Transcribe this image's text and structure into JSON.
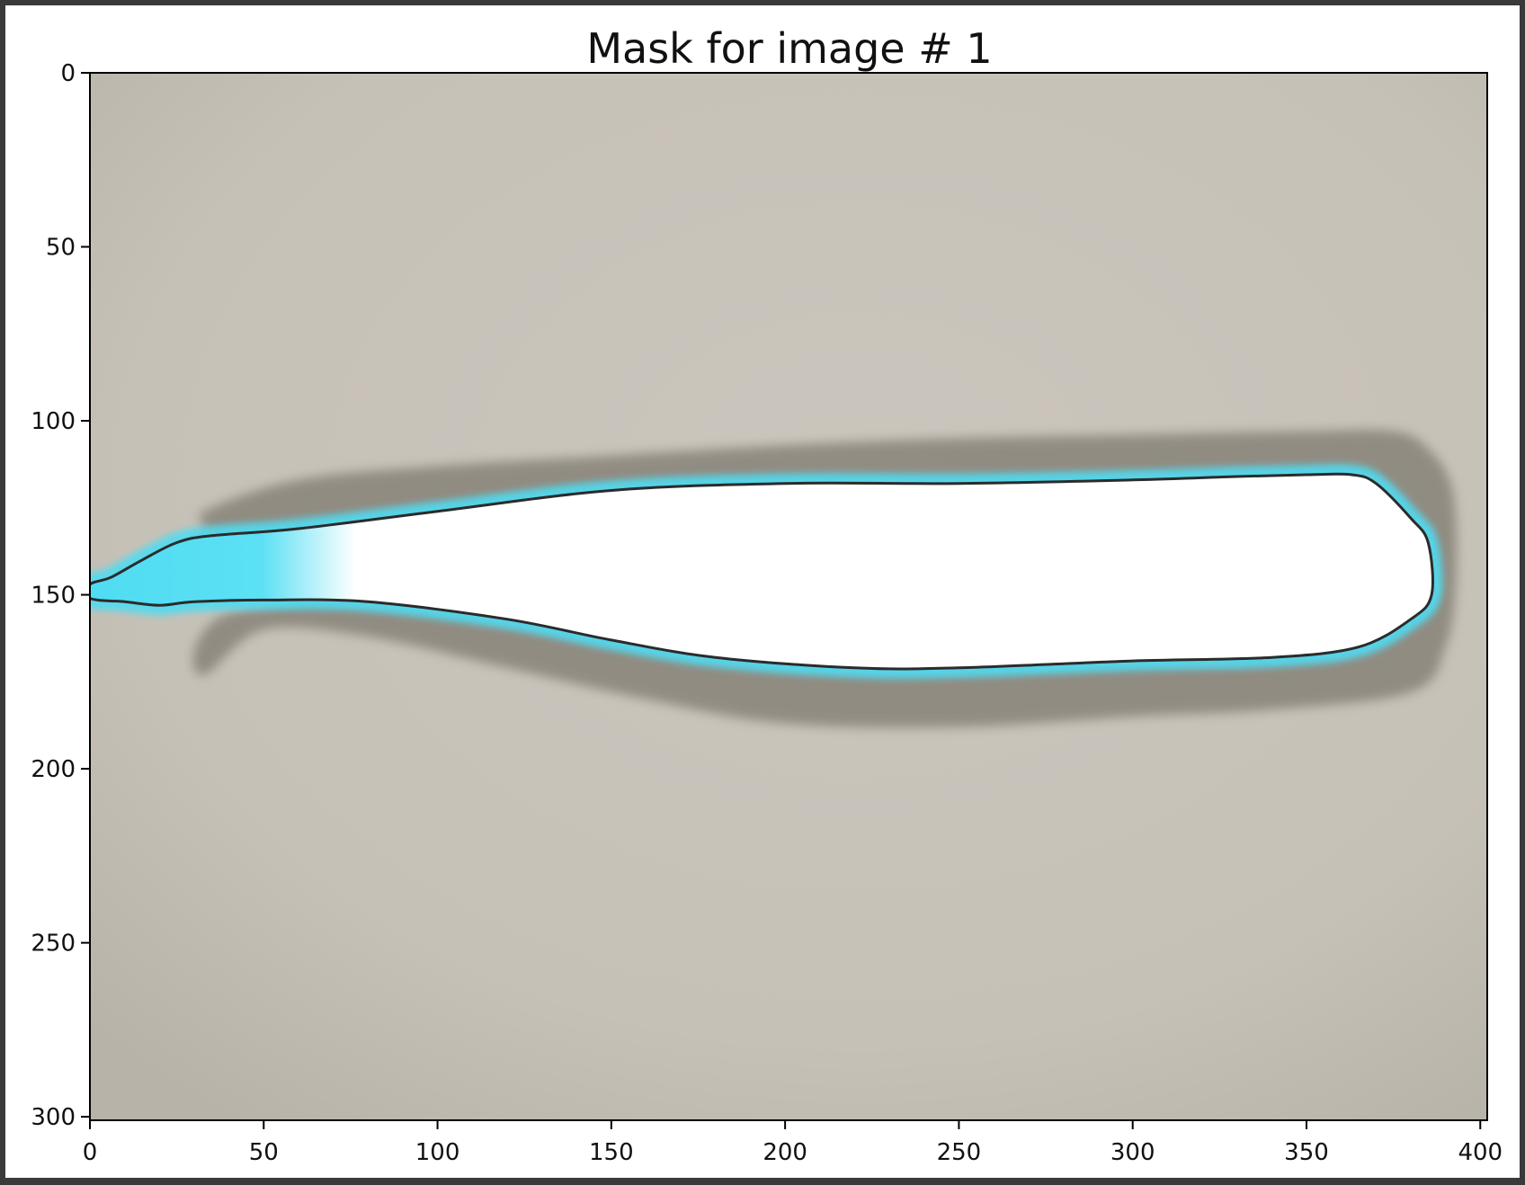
{
  "chart_data": {
    "type": "image",
    "title": "Mask for image # 1",
    "xlabel": "",
    "ylabel": "",
    "xlim": [
      0,
      402
    ],
    "ylim": [
      301,
      0
    ],
    "x_ticks": [
      0,
      50,
      100,
      150,
      200,
      250,
      300,
      350,
      400
    ],
    "y_ticks": [
      0,
      50,
      100,
      150,
      200,
      250,
      300
    ],
    "grid": false,
    "legend": "none",
    "colors": {
      "background": "#c9c4bb",
      "shadow": "#8c877d",
      "mask_fill": "#ffffff",
      "mask_edge": "#4fdcf2",
      "outline": "#2b2b2b"
    },
    "mask_outline": [
      [
        0,
        147
      ],
      [
        6,
        145
      ],
      [
        15,
        140
      ],
      [
        25,
        135
      ],
      [
        35,
        133
      ],
      [
        60,
        131
      ],
      [
        100,
        126
      ],
      [
        150,
        120
      ],
      [
        200,
        118
      ],
      [
        250,
        118
      ],
      [
        300,
        117
      ],
      [
        330,
        116
      ],
      [
        350,
        115.5
      ],
      [
        363,
        115.5
      ],
      [
        370,
        118
      ],
      [
        380,
        128
      ],
      [
        385,
        135
      ],
      [
        386,
        150
      ],
      [
        380,
        157
      ],
      [
        365,
        165
      ],
      [
        340,
        168
      ],
      [
        300,
        169
      ],
      [
        250,
        171
      ],
      [
        220,
        171
      ],
      [
        180,
        168
      ],
      [
        150,
        163
      ],
      [
        120,
        157
      ],
      [
        80,
        152
      ],
      [
        50,
        151.5
      ],
      [
        30,
        152
      ],
      [
        20,
        153
      ],
      [
        10,
        152
      ],
      [
        0,
        151
      ]
    ],
    "shadow_outline": [
      [
        33,
        126
      ],
      [
        60,
        117
      ],
      [
        100,
        113
      ],
      [
        150,
        110
      ],
      [
        200,
        107
      ],
      [
        250,
        105
      ],
      [
        300,
        104
      ],
      [
        350,
        103
      ],
      [
        375,
        103
      ],
      [
        385,
        108
      ],
      [
        392,
        120
      ],
      [
        393,
        145
      ],
      [
        390,
        165
      ],
      [
        380,
        178
      ],
      [
        340,
        183
      ],
      [
        300,
        185
      ],
      [
        250,
        188
      ],
      [
        200,
        187
      ],
      [
        160,
        180
      ],
      [
        120,
        171
      ],
      [
        80,
        162
      ],
      [
        50,
        160
      ],
      [
        33,
        173
      ],
      [
        30,
        166
      ],
      [
        38,
        156
      ],
      [
        60,
        150
      ],
      [
        30,
        143
      ],
      [
        33,
        131
      ]
    ]
  }
}
